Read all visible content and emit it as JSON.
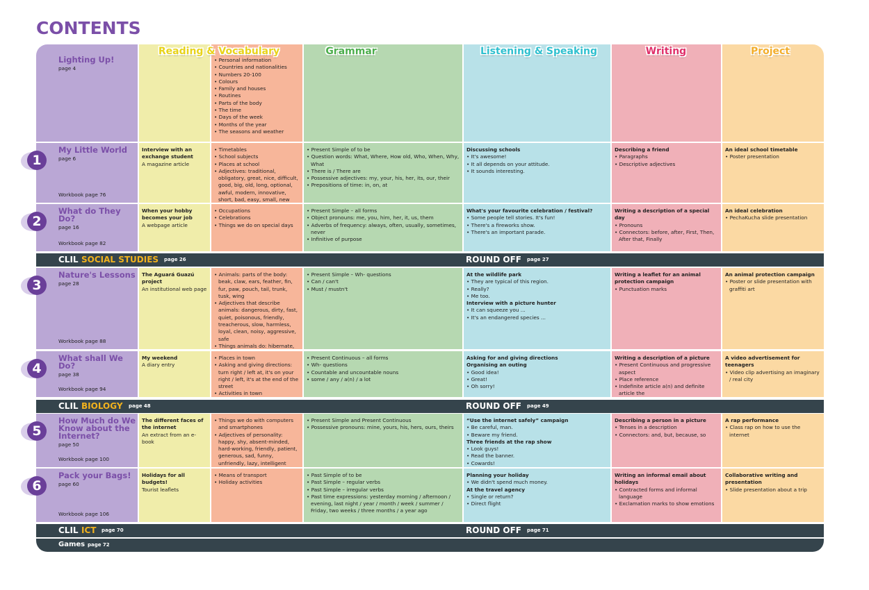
{
  "title": "CONTENTS",
  "headers": [
    "Reading & Vocabulary",
    "Grammar",
    "Listening & Speaking",
    "Writing",
    "Project"
  ],
  "units": [
    {
      "name": "Lighting Up!",
      "page": "page 4",
      "vocabulary": [
        "Personal information",
        "Countries and nationalities",
        "Numbers 20-100",
        "Colours",
        "Family and houses",
        "Routines",
        "Parts of the body",
        "The time",
        "Days of the week",
        "Months of the year",
        "The seasons and weather"
      ]
    },
    {
      "number": "1",
      "name": "My Little World",
      "page": "page 6",
      "workbook": "Workbook page 76",
      "reading": [
        {
          "heading": "Interview with an exchange student"
        },
        {
          "text": "A magazine article"
        }
      ],
      "vocabulary": [
        "Timetables",
        "School subjects",
        "Places at school",
        "Adjectives: traditional, obligatory, great, nice, difficult, good, big, old, long, optional, awful, modern, innovative, short, bad, easy, small, new"
      ],
      "grammar": [
        "Present Simple of to be",
        "Question words: What, Where, How old, Who, When, Why, What",
        "There is / There are",
        "Possessive adjectives: my, your, his, her, its, our, their",
        "Prepositions of time: in, on, at"
      ],
      "listening": [
        {
          "heading": "Discussing schools"
        },
        "It's awesome!",
        "It all depends on your attitude.",
        "It sounds interesting."
      ],
      "writing": [
        {
          "heading": "Describing a friend"
        },
        "Paragraphs",
        "Descriptive adjectives"
      ],
      "project": [
        {
          "heading": "An ideal school timetable"
        },
        "Poster presentation"
      ]
    },
    {
      "number": "2",
      "name": "What do They Do?",
      "page": "page 16",
      "workbook": "Workbook page 82",
      "reading": [
        {
          "heading": "When your hobby becomes your job"
        },
        {
          "text": "A webpage article"
        }
      ],
      "vocabulary": [
        "Occupations",
        "Celebrations",
        "Things we do on special days"
      ],
      "grammar": [
        "Present Simple – all forms",
        "Object pronouns: me, you, him, her, it, us, them",
        "Adverbs of frequency: always, often, usually, sometimes, never",
        "Infinitive of purpose"
      ],
      "listening": [
        {
          "heading": "What's your favourite celebration / festival?"
        },
        "Some people tell stories. It's fun!",
        "There's a fireworks show.",
        "There's an important parade."
      ],
      "writing": [
        {
          "heading": "Writing a description of a special day"
        },
        "Pronouns",
        "Connectors: before, after, First, Then, After that, Finally"
      ],
      "project": [
        {
          "heading": "An ideal celebration"
        },
        "PechaKucha slide presentation"
      ]
    },
    {
      "number": "3",
      "name": "Nature's Lessons",
      "page": "page 28",
      "workbook": "Workbook page 88",
      "reading": [
        {
          "heading": "The Aguará Guazú project"
        },
        {
          "text": "An institutional web page"
        }
      ],
      "vocabulary": [
        "Animals: parts of the body: beak, claw, ears, feather, fin, fur, paw, pouch, tail, trunk, tusk, wing",
        "Adjectives that describe animals: dangerous, dirty, fast, quiet, poisonous, friendly, treacherous, slow, harmless, loyal, clean, noisy, aggressive, safe",
        "Things animals do: hibernate, sting, build, migrate, hunt, bite, hide, survive, lay, kill"
      ],
      "grammar": [
        "Present Simple – Wh- questions",
        "Can / can't",
        "Must / mustn't"
      ],
      "listening": [
        {
          "heading": "At the wildlife park"
        },
        "They are typical of this region.",
        "Really?",
        "Me too.",
        {
          "heading": "Interview with a picture hunter"
        },
        "It can squeeze you ...",
        "It's an endangered species ..."
      ],
      "writing": [
        {
          "heading": "Writing a leaflet for an animal protection campaign"
        },
        "Punctuation marks"
      ],
      "project": [
        {
          "heading": "An animal protection campaign"
        },
        "Poster or slide presentation with graffiti art"
      ]
    },
    {
      "number": "4",
      "name": "What shall We Do?",
      "page": "page 38",
      "workbook": "Workbook page 94",
      "reading": [
        {
          "heading": "My weekend"
        },
        {
          "text": "A diary entry"
        }
      ],
      "vocabulary": [
        "Places in town",
        "Asking and giving directions: turn right / left at, it's on your right / left, it's at the end of the street",
        "Activities in town"
      ],
      "grammar": [
        "Present Continuous – all forms",
        "Wh- questions",
        "Countable and uncountable nouns",
        "some / any / a(n) / a lot"
      ],
      "listening": [
        {
          "heading": "Asking for and giving directions"
        },
        {
          "heading": "Organising an outing"
        },
        "Good idea!",
        "Great!",
        "Oh sorry!"
      ],
      "writing": [
        {
          "heading": "Writing a description of a picture"
        },
        "Present Continuous and progressive aspect",
        "Place reference",
        "Indefinite article a(n) and definite article the"
      ],
      "project": [
        {
          "heading": "A video advertisement for teenagers"
        },
        "Video clip advertising an imaginary / real city"
      ]
    },
    {
      "number": "5",
      "name": "How Much do We Know about the Internet?",
      "page": "page 50",
      "workbook": "Workbook page 100",
      "reading": [
        {
          "heading": "The different faces of the internet"
        },
        {
          "text": "An extract from an e-book"
        }
      ],
      "vocabulary": [
        "Things we do with computers and smartphones",
        "Adjectives of personality: happy, shy, absent-minded, hard-working, friendly, patient, generous, sad, funny, unfriendly, lazy, intelligent"
      ],
      "grammar": [
        "Present Simple and Present Continuous",
        "Possessive pronouns: mine, yours, his, hers, ours, theirs"
      ],
      "listening": [
        {
          "heading": "“Use the internet safely” campaign"
        },
        "Be careful, man.",
        "Beware my friend.",
        {
          "heading": "Three friends at the rap show"
        },
        "Look guys!",
        "Read the banner.",
        "Cowards!"
      ],
      "writing": [
        {
          "heading": "Describing a person in a picture"
        },
        "Tenses in a description",
        "Connectors: and, but, because, so"
      ],
      "project": [
        {
          "heading": "A rap performance"
        },
        "Class rap on how to use the internet"
      ]
    },
    {
      "number": "6",
      "name": "Pack your Bags!",
      "page": "page 60",
      "workbook": "Workbook page 106",
      "reading": [
        {
          "heading": "Holidays for all budgets!"
        },
        {
          "text": "Tourist leaflets"
        }
      ],
      "vocabulary": [
        "Means of transport",
        "Holiday activities"
      ],
      "grammar": [
        "Past Simple of to be",
        "Past Simple – regular verbs",
        "Past Simple – irregular verbs",
        "Past time expressions: yesterday morning / afternoon / evening, last night / year / month / week / summer / Friday, two weeks / three months / a year ago"
      ],
      "listening": [
        {
          "heading": "Planning your holiday"
        },
        "We didn't spend much money.",
        {
          "heading": "At the travel agency"
        },
        "Single or return?",
        "Direct flight"
      ],
      "writing": [
        {
          "heading": "Writing an informal email about holidays"
        },
        "Contracted forms and informal language",
        "Exclamation marks to show emotions"
      ],
      "project": [
        {
          "heading": "Collaborative writing and presentation"
        },
        "Slide presentation about a trip"
      ]
    }
  ],
  "bars": [
    {
      "label": "CLIL",
      "subject": "SOCIAL STUDIES",
      "page": "page 26",
      "round_off": "ROUND OFF",
      "round_off_page": "page 27"
    },
    {
      "label": "CLIL",
      "subject": "BIOLOGY",
      "page": "page 48",
      "round_off": "ROUND OFF",
      "round_off_page": "page 49"
    },
    {
      "label": "CLIL",
      "subject": "ICT",
      "page": "page 70",
      "round_off": "ROUND OFF",
      "round_off_page": "page 71"
    }
  ],
  "games": {
    "label": "Games",
    "page": "page 72"
  }
}
